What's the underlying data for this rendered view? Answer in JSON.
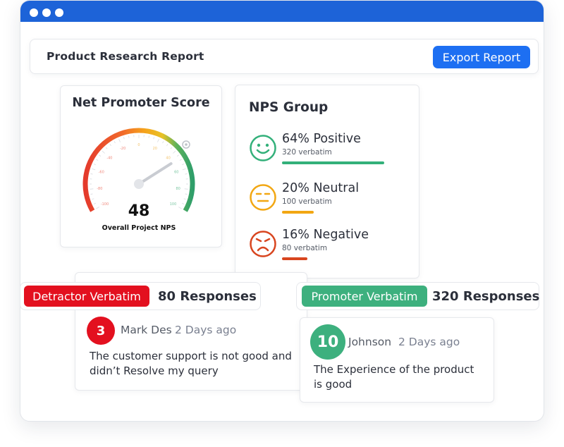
{
  "window": {
    "dots": 3
  },
  "header": {
    "title": "Product Research Report",
    "export_label": "Export Report"
  },
  "nps": {
    "title": "Net Promoter Score",
    "value": "48",
    "score": 48,
    "caption": "Overall Project NPS",
    "scale": [
      "-100",
      "-80",
      "-60",
      "-40",
      "-20",
      "0",
      "20",
      "40",
      "60",
      "80",
      "100"
    ]
  },
  "groups": {
    "title": "NPS Group",
    "items": [
      {
        "label": "64% Positive",
        "sub": "320 verbatim",
        "percent": 64,
        "color": "#33b07a",
        "mood": "happy"
      },
      {
        "label": "20% Neutral",
        "sub": "100 verbatim",
        "percent": 20,
        "color": "#f2a713",
        "mood": "neutral"
      },
      {
        "label": "16% Negative",
        "sub": "80 verbatim",
        "percent": 16,
        "color": "#d8451f",
        "mood": "sad"
      }
    ]
  },
  "detractor": {
    "pill": "Detractor Verbatim",
    "count": "80 Responses",
    "color": "#e3101f",
    "score": "3",
    "author": "Mark Des",
    "when": "2 Days ago",
    "comment_line1": "The customer support is not good and",
    "comment_line2": "didn’t Resolve my query"
  },
  "promoter": {
    "pill": "Promoter Verbatim",
    "count": "320 Responses",
    "color": "#3db07e",
    "score": "10",
    "author": "Johnson",
    "when": "2 Days ago",
    "comment_line1": "The Experience of the product",
    "comment_line2": "is good"
  }
}
